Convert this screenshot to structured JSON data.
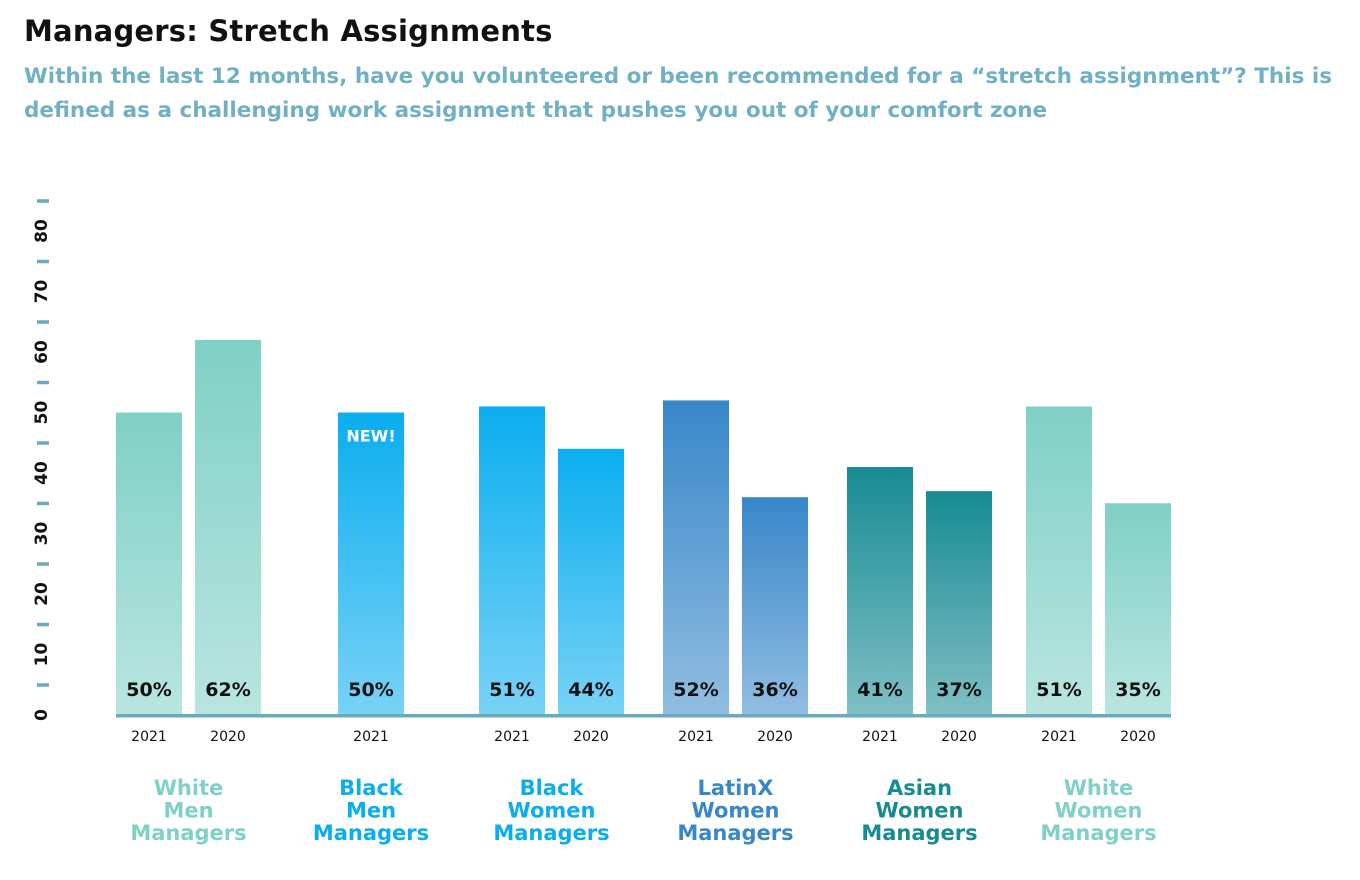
{
  "chart_data": {
    "type": "bar",
    "title": "Managers: Stretch Assignments",
    "subtitle": "Within the last 12 months, have you volunteered or been recommended for a “stretch assignment”? This is defined as a challenging work assignment that pushes you out of your comfort zone",
    "ylim": [
      0,
      85
    ],
    "yticks": [
      "0",
      "10",
      "20",
      "30",
      "40",
      "50",
      "60",
      "70",
      "80"
    ],
    "colors": {
      "subtitle": "#6fb0c4",
      "axis": "#6aaabb"
    },
    "groups": [
      {
        "label": "White\nMen\nManagers",
        "color": "#7fd0c6",
        "bars": [
          {
            "year": "2021",
            "value": 50,
            "label": "50%"
          },
          {
            "year": "2020",
            "value": 62,
            "label": "62%"
          }
        ]
      },
      {
        "label": "Black\nMen\nManagers",
        "color": "#0aaeef",
        "bars": [
          {
            "year": "2021",
            "value": 50,
            "label": "50%",
            "badge": "NEW!"
          }
        ]
      },
      {
        "label": "Black\nWomen\nManagers",
        "color": "#0aaeef",
        "bars": [
          {
            "year": "2021",
            "value": 51,
            "label": "51%"
          },
          {
            "year": "2020",
            "value": 44,
            "label": "44%"
          }
        ]
      },
      {
        "label": "LatinX\nWomen\nManagers",
        "color": "#3787c9",
        "bars": [
          {
            "year": "2021",
            "value": 52,
            "label": "52%"
          },
          {
            "year": "2020",
            "value": 36,
            "label": "36%"
          }
        ]
      },
      {
        "label": "Asian\nWomen\nManagers",
        "color": "#178b93",
        "bars": [
          {
            "year": "2021",
            "value": 41,
            "label": "41%"
          },
          {
            "year": "2020",
            "value": 37,
            "label": "37%"
          }
        ]
      },
      {
        "label": "White\nWomen\nManagers",
        "color": "#7fd0c6",
        "bars": [
          {
            "year": "2021",
            "value": 51,
            "label": "51%"
          },
          {
            "year": "2020",
            "value": 35,
            "label": "35%"
          }
        ]
      }
    ]
  }
}
